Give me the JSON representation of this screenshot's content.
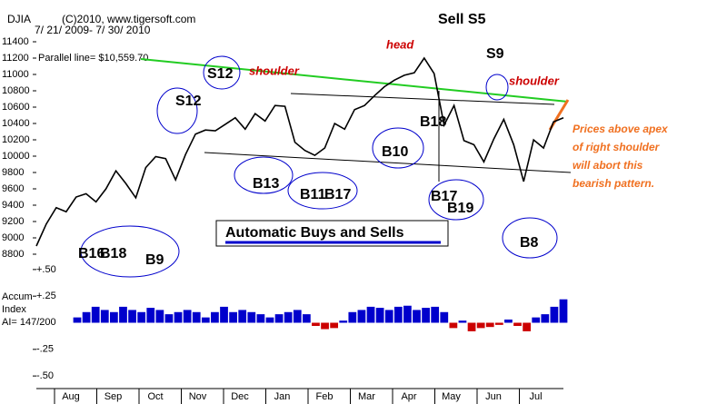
{
  "chart_data": [
    {
      "type": "line",
      "title": "DJIA",
      "subtitle": "(C)2010, www.tigersoft.com",
      "date_range": "7/ 21/ 2009- 7/ 30/ 2010",
      "parallel_line": "Parallel line= $10,559.70",
      "months": [
        "Aug",
        "Sep",
        "Oct",
        "Nov",
        "Dec",
        "Jan",
        "Feb",
        "Mar",
        "Apr",
        "May",
        "Jun",
        "Jul"
      ],
      "series": [
        {
          "name": "DJIA",
          "color": "#000000",
          "values": [
            8900,
            9170,
            9370,
            9320,
            9500,
            9540,
            9440,
            9600,
            9820,
            9665,
            9490,
            9860,
            9995,
            9970,
            9710,
            10020,
            10270,
            10320,
            10310,
            10390,
            10470,
            10330,
            10520,
            10430,
            10620,
            10610,
            10170,
            10070,
            10010,
            10100,
            10400,
            10330,
            10570,
            10620,
            10740,
            10850,
            10930,
            10990,
            11020,
            11200,
            11010,
            10380,
            10620,
            10190,
            10140,
            9930,
            10210,
            10450,
            10140,
            9690,
            10200,
            10100,
            10420,
            10470
          ]
        }
      ],
      "ylim": [
        8700,
        11500
      ],
      "yticks": [
        8800,
        9000,
        9200,
        9400,
        9600,
        9800,
        10000,
        10200,
        10400,
        10600,
        10800,
        11000,
        11200,
        11400
      ],
      "signals": [
        "S12",
        "S12",
        "B13",
        "B11",
        "B17",
        "B10",
        "B18",
        "B17",
        "B19",
        "B8",
        "S9",
        "Sell S5",
        "B16",
        "B18",
        "B9"
      ],
      "annotations": [
        "head",
        "shoulder",
        "shoulder",
        "Automatic Buys and Sells",
        "Prices above apex",
        "of right shoulder",
        "will abort this",
        "bearish pattern."
      ]
    },
    {
      "type": "bar",
      "title": "Accum",
      "subtitle": "Index",
      "ai": "AI= 147/200",
      "pos_color": "#0000cc",
      "neg_color": "#cc0000",
      "values": [
        0.05,
        0.1,
        0.15,
        0.12,
        0.1,
        0.15,
        0.12,
        0.1,
        0.14,
        0.12,
        0.08,
        0.1,
        0.12,
        0.1,
        0.05,
        0.1,
        0.15,
        0.1,
        0.12,
        0.1,
        0.08,
        0.05,
        0.08,
        0.1,
        0.12,
        0.08,
        -0.03,
        -0.06,
        -0.05,
        0.02,
        0.1,
        0.12,
        0.15,
        0.14,
        0.12,
        0.15,
        0.16,
        0.12,
        0.14,
        0.15,
        0.1,
        -0.05,
        0.02,
        -0.08,
        -0.05,
        -0.04,
        -0.02,
        0.03,
        -0.03,
        -0.08,
        0.05,
        0.08,
        0.15,
        0.22
      ],
      "ylim": [
        -0.55,
        0.55
      ],
      "yticks": [
        {
          "value": 0.5,
          "label": "+.50"
        },
        {
          "value": 0.25,
          "label": "+.25"
        },
        {
          "value": -0.25,
          "label": "-.25"
        },
        {
          "value": -0.5,
          "label": "-.50"
        }
      ]
    }
  ]
}
